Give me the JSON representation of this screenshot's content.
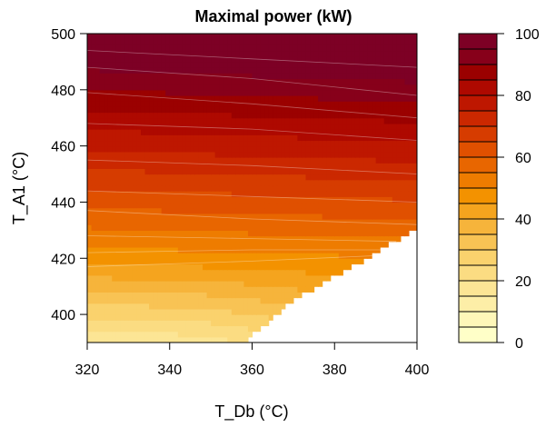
{
  "chart_data": {
    "type": "heatmap",
    "title": "Maximal power (kW)",
    "xlabel": "T_Db (°C)",
    "ylabel": "T_A1 (°C)",
    "xlim": [
      320,
      400
    ],
    "ylim": [
      390,
      500
    ],
    "x_ticks": [
      320,
      340,
      360,
      380,
      400
    ],
    "y_ticks": [
      400,
      420,
      440,
      460,
      480,
      500
    ],
    "colorbar": {
      "min": 0,
      "max": 100,
      "ticks": [
        0,
        20,
        40,
        60,
        80,
        100
      ],
      "level_colors": [
        "#FFFFC8",
        "#FEF7B9",
        "#FDEEA7",
        "#FCE595",
        "#FBDC82",
        "#FAD26D",
        "#F8C354",
        "#F6B43B",
        "#F5A41E",
        "#F39200",
        "#EE7C00",
        "#E86600",
        "#E05000",
        "#D63C00",
        "#CB2800",
        "#BE1700",
        "#AE0900",
        "#9B0100",
        "#87001A",
        "#7D0025"
      ]
    },
    "contour_lines": [
      {
        "level": 95,
        "points": [
          [
            320,
            494
          ],
          [
            360,
            491
          ],
          [
            400,
            488
          ]
        ]
      },
      {
        "level": 90,
        "points": [
          [
            320,
            488
          ],
          [
            360,
            484
          ],
          [
            400,
            478
          ]
        ]
      },
      {
        "level": 85,
        "points": [
          [
            320,
            479
          ],
          [
            360,
            475
          ],
          [
            400,
            470
          ]
        ]
      },
      {
        "level": 80,
        "points": [
          [
            320,
            468
          ],
          [
            360,
            466
          ],
          [
            400,
            462
          ]
        ]
      },
      {
        "level": 75,
        "points": [
          [
            320,
            455
          ],
          [
            360,
            453
          ],
          [
            400,
            450
          ]
        ]
      },
      {
        "level": 70,
        "points": [
          [
            320,
            444
          ],
          [
            360,
            442
          ],
          [
            400,
            440
          ]
        ]
      },
      {
        "level": 65,
        "points": [
          [
            320,
            437
          ],
          [
            360,
            434
          ],
          [
            400,
            432
          ]
        ]
      },
      {
        "level": 60,
        "points": [
          [
            320,
            428
          ],
          [
            360,
            427
          ],
          [
            395,
            426
          ]
        ]
      },
      {
        "level": 55,
        "points": [
          [
            320,
            422
          ],
          [
            360,
            423
          ],
          [
            393,
            423
          ]
        ]
      },
      {
        "level": 50,
        "points": [
          [
            320,
            417
          ],
          [
            360,
            419
          ],
          [
            391,
            421
          ]
        ]
      }
    ],
    "no_data_region": [
      [
        358,
        390
      ],
      [
        400,
        390
      ],
      [
        400,
        431
      ],
      [
        389,
        421
      ],
      [
        370,
        405
      ]
    ]
  }
}
